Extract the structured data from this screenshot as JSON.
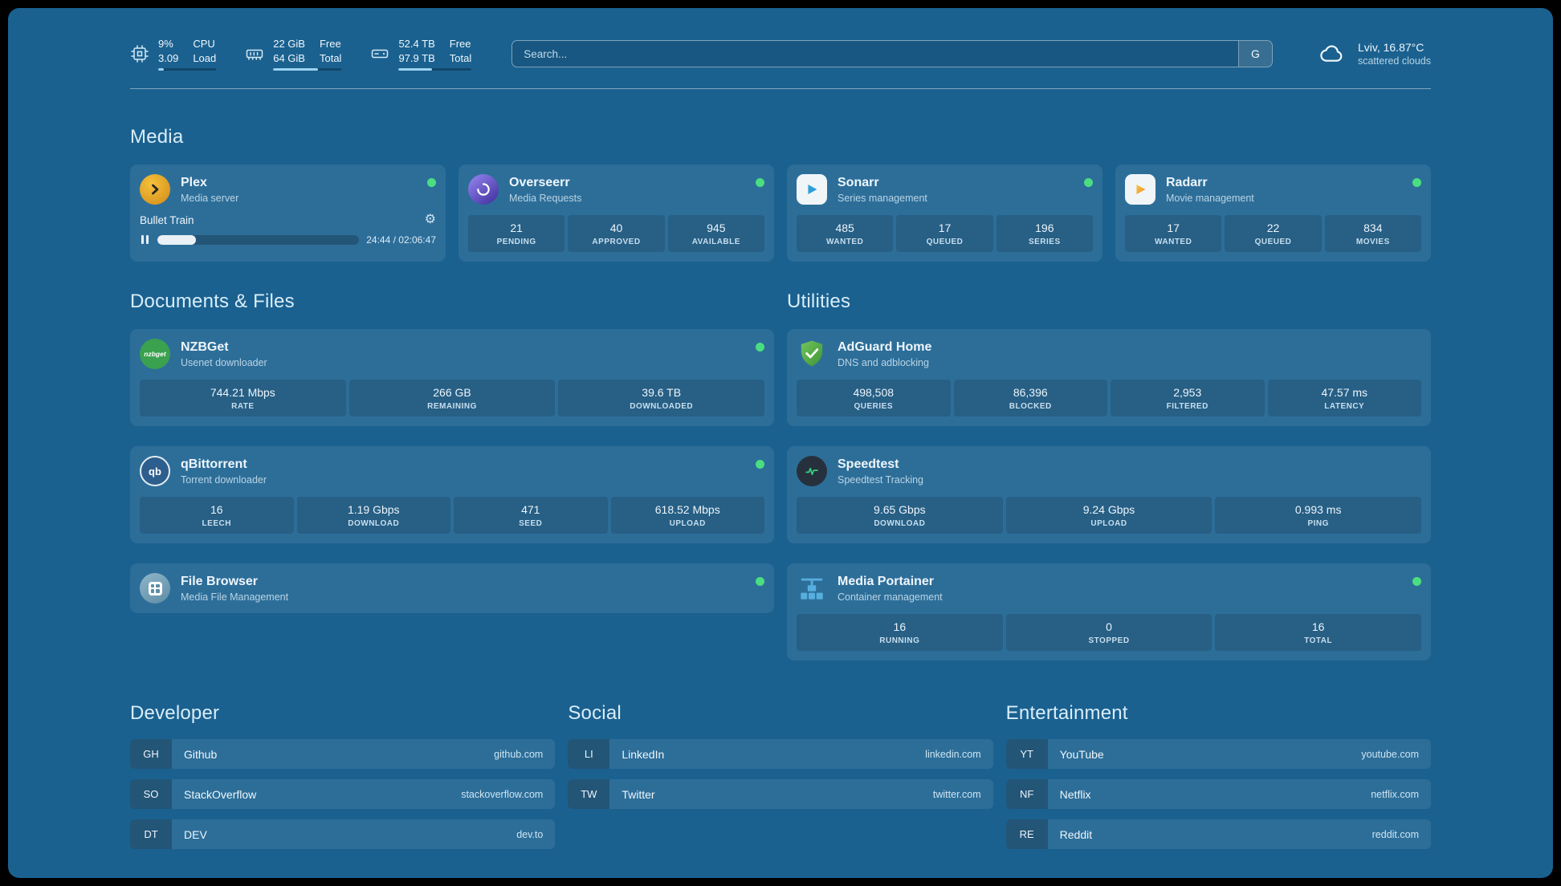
{
  "theme": {
    "background": "#1a6190",
    "card": "rgba(255,255,255,0.085)",
    "status_green": "#4ade80",
    "plex_amber": "#e5a00d",
    "adguard_green": "#68bc49",
    "speedtest_pulse_green": "#35d07f"
  },
  "icons": {
    "gear": "⚙",
    "nzbget_label": "nzbget",
    "qbittorrent_label": "qb"
  },
  "topbar": {
    "cpu": {
      "usage": "9%",
      "load": "3.09",
      "label_top": "CPU",
      "label_bottom": "Load",
      "bar_percent": 9
    },
    "memory": {
      "free": "22 GiB",
      "total": "64 GiB",
      "label_top": "Free",
      "label_bottom": "Total",
      "bar_percent": 66
    },
    "disk": {
      "free": "52.4 TB",
      "total": "97.9 TB",
      "label_top": "Free",
      "label_bottom": "Total",
      "bar_percent": 46
    },
    "search": {
      "placeholder": "Search...",
      "provider_label": "G"
    },
    "weather": {
      "location_temp": "Lviv, 16.87°C",
      "condition": "scattered clouds"
    }
  },
  "media": {
    "title": "Media",
    "plex": {
      "name": "Plex",
      "desc": "Media server",
      "now_playing": "Bullet Train",
      "time": "24:44 / 02:06:47",
      "progress_percent": 19
    },
    "overseerr": {
      "name": "Overseerr",
      "desc": "Media Requests",
      "stats": [
        {
          "value": "21",
          "label": "PENDING"
        },
        {
          "value": "40",
          "label": "APPROVED"
        },
        {
          "value": "945",
          "label": "AVAILABLE"
        }
      ]
    },
    "sonarr": {
      "name": "Sonarr",
      "desc": "Series management",
      "stats": [
        {
          "value": "485",
          "label": "WANTED"
        },
        {
          "value": "17",
          "label": "QUEUED"
        },
        {
          "value": "196",
          "label": "SERIES"
        }
      ]
    },
    "radarr": {
      "name": "Radarr",
      "desc": "Movie management",
      "stats": [
        {
          "value": "17",
          "label": "WANTED"
        },
        {
          "value": "22",
          "label": "QUEUED"
        },
        {
          "value": "834",
          "label": "MOVIES"
        }
      ]
    }
  },
  "documents": {
    "title": "Documents & Files",
    "nzbget": {
      "name": "NZBGet",
      "desc": "Usenet downloader",
      "stats": [
        {
          "value": "744.21 Mbps",
          "label": "RATE"
        },
        {
          "value": "266 GB",
          "label": "REMAINING"
        },
        {
          "value": "39.6 TB",
          "label": "DOWNLOADED"
        }
      ]
    },
    "qbittorrent": {
      "name": "qBittorrent",
      "desc": "Torrent downloader",
      "stats": [
        {
          "value": "16",
          "label": "LEECH"
        },
        {
          "value": "1.19 Gbps",
          "label": "DOWNLOAD"
        },
        {
          "value": "471",
          "label": "SEED"
        },
        {
          "value": "618.52 Mbps",
          "label": "UPLOAD"
        }
      ]
    },
    "filebrowser": {
      "name": "File Browser",
      "desc": "Media File Management"
    }
  },
  "utilities": {
    "title": "Utilities",
    "adguard": {
      "name": "AdGuard Home",
      "desc": "DNS and adblocking",
      "stats": [
        {
          "value": "498,508",
          "label": "QUERIES"
        },
        {
          "value": "86,396",
          "label": "BLOCKED"
        },
        {
          "value": "2,953",
          "label": "FILTERED"
        },
        {
          "value": "47.57 ms",
          "label": "LATENCY"
        }
      ]
    },
    "speedtest": {
      "name": "Speedtest",
      "desc": "Speedtest Tracking",
      "stats": [
        {
          "value": "9.65 Gbps",
          "label": "DOWNLOAD"
        },
        {
          "value": "9.24 Gbps",
          "label": "UPLOAD"
        },
        {
          "value": "0.993 ms",
          "label": "PING"
        }
      ]
    },
    "portainer": {
      "name": "Media Portainer",
      "desc": "Container management",
      "stats": [
        {
          "value": "16",
          "label": "RUNNING"
        },
        {
          "value": "0",
          "label": "STOPPED"
        },
        {
          "value": "16",
          "label": "TOTAL"
        }
      ]
    }
  },
  "bookmarks": {
    "developer": {
      "title": "Developer",
      "items": [
        {
          "abbr": "GH",
          "name": "Github",
          "domain": "github.com"
        },
        {
          "abbr": "SO",
          "name": "StackOverflow",
          "domain": "stackoverflow.com"
        },
        {
          "abbr": "DT",
          "name": "DEV",
          "domain": "dev.to"
        }
      ]
    },
    "social": {
      "title": "Social",
      "items": [
        {
          "abbr": "LI",
          "name": "LinkedIn",
          "domain": "linkedin.com"
        },
        {
          "abbr": "TW",
          "name": "Twitter",
          "domain": "twitter.com"
        }
      ]
    },
    "entertainment": {
      "title": "Entertainment",
      "items": [
        {
          "abbr": "YT",
          "name": "YouTube",
          "domain": "youtube.com"
        },
        {
          "abbr": "NF",
          "name": "Netflix",
          "domain": "netflix.com"
        },
        {
          "abbr": "RE",
          "name": "Reddit",
          "domain": "reddit.com"
        }
      ]
    }
  }
}
